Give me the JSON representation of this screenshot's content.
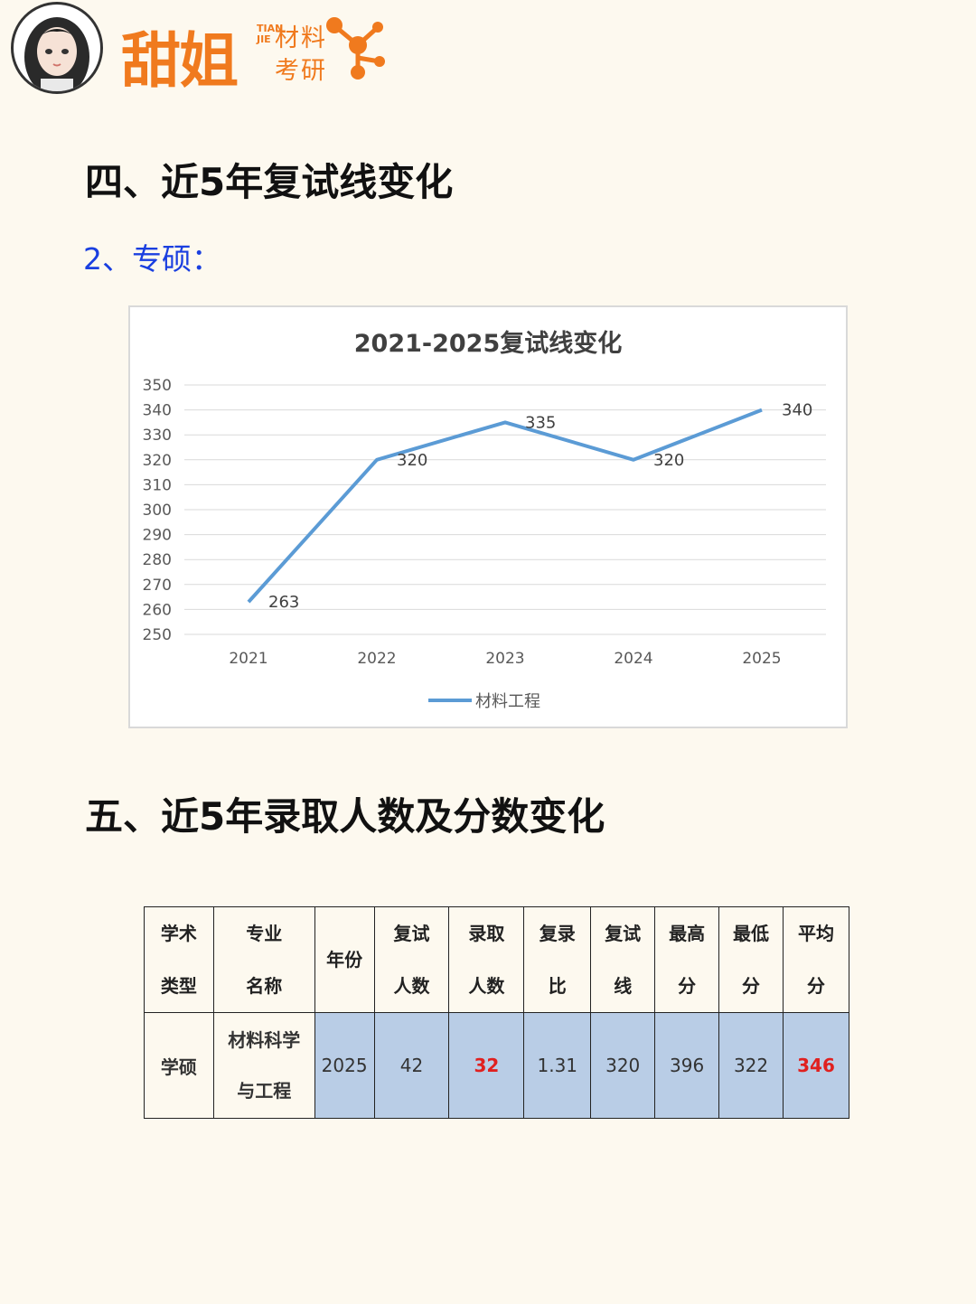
{
  "brand": {
    "name": "甜姐",
    "pinyin": "TIAN JIE",
    "sub1": "材料",
    "sub2": "考研",
    "accent": "#f07a1e"
  },
  "section1": {
    "title": "四、近5年复试线变化",
    "subtitle": "2、专硕："
  },
  "chart_data": {
    "type": "line",
    "title": "2021-2025复试线变化",
    "categories": [
      "2021",
      "2022",
      "2023",
      "2024",
      "2025"
    ],
    "series": [
      {
        "name": "材料工程",
        "values": [
          263,
          320,
          335,
          320,
          340
        ],
        "color": "#5b9bd5"
      }
    ],
    "ylim": [
      250,
      350
    ],
    "yticks": [
      350,
      340,
      330,
      320,
      310,
      300,
      290,
      280,
      270,
      260,
      250
    ],
    "grid": true,
    "legend": "bottom"
  },
  "section2": {
    "title": "五、近5年录取人数及分数变化"
  },
  "table": {
    "headers": [
      [
        "学术",
        "类型"
      ],
      [
        "专业",
        "名称"
      ],
      [
        "年份"
      ],
      [
        "复试",
        "人数"
      ],
      [
        "录取",
        "人数"
      ],
      [
        "复录",
        "比"
      ],
      [
        "复试",
        "线"
      ],
      [
        "最高",
        "分"
      ],
      [
        "最低",
        "分"
      ],
      [
        "平均",
        "分"
      ]
    ],
    "row": {
      "type": "学硕",
      "major_line1": "材料科学",
      "major_line2": "与工程",
      "year": "2025",
      "retest_count": "42",
      "admit_count": "32",
      "ratio": "1.31",
      "line": "320",
      "max": "396",
      "min": "322",
      "avg": "346"
    }
  }
}
